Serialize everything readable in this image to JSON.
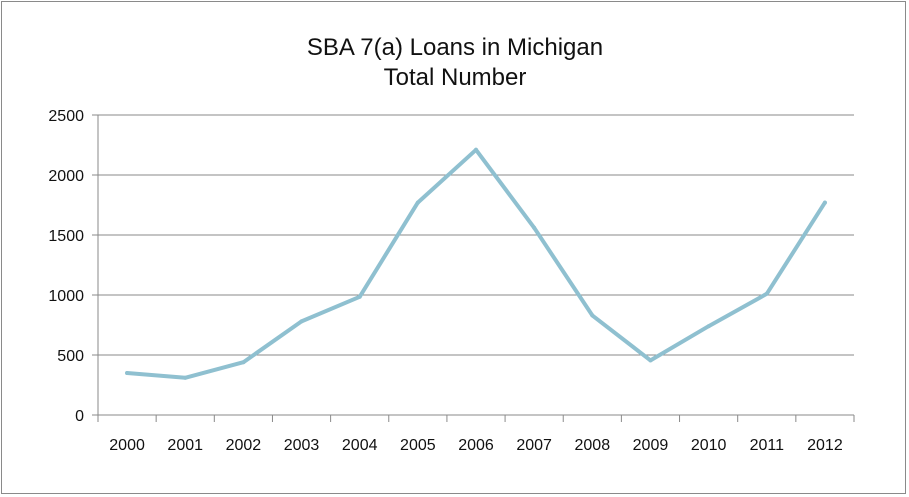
{
  "chart_data": {
    "type": "line",
    "title_lines": [
      "SBA 7(a) Loans in Michigan",
      "Total Number"
    ],
    "xlabel": "",
    "ylabel": "",
    "categories": [
      "2000",
      "2001",
      "2002",
      "2003",
      "2004",
      "2005",
      "2006",
      "2007",
      "2008",
      "2009",
      "2010",
      "2011",
      "2012"
    ],
    "series": [
      {
        "values": [
          350,
          310,
          440,
          780,
          985,
          1770,
          2210,
          1560,
          830,
          455,
          740,
          1010,
          1770
        ]
      }
    ],
    "ylim": [
      0,
      2500
    ],
    "yticks": [
      0,
      500,
      1000,
      1500,
      2000,
      2500
    ],
    "grid": true,
    "legend": "none",
    "line_color": "#8fc0d0",
    "gridline_color": "#8a8a8a"
  }
}
